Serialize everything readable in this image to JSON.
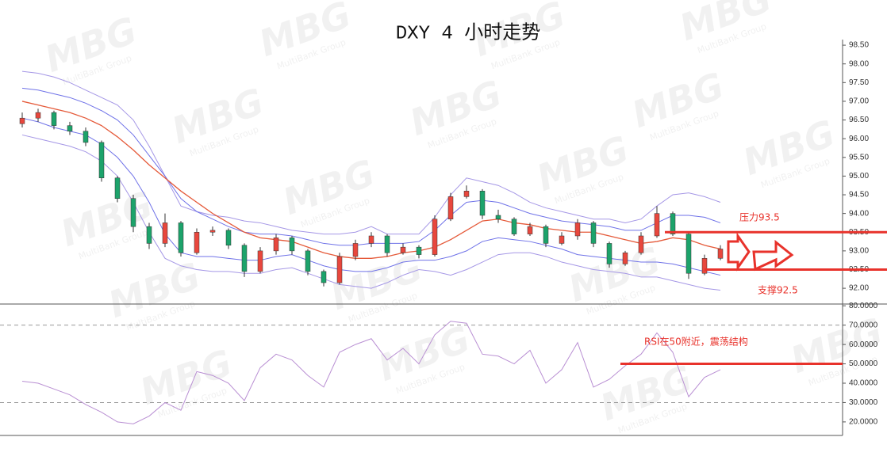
{
  "chart_data": [
    {
      "type": "candlestick",
      "title": "DXY 4 小时走势",
      "open": [
        96.4,
        96.55,
        96.7,
        96.35,
        96.2,
        95.9,
        94.95,
        94.4,
        93.65,
        93.2,
        93.75,
        92.95,
        93.5,
        93.55,
        93.15,
        92.45,
        93.0,
        93.35,
        93.0,
        92.45,
        92.15,
        92.85,
        93.2,
        93.4,
        92.95,
        93.1,
        92.9,
        93.85,
        94.45,
        94.6,
        93.95,
        93.85,
        93.45,
        93.65,
        93.2,
        93.4,
        93.75,
        93.2,
        92.65,
        92.95,
        93.4,
        94.0,
        93.45,
        92.4,
        92.8
      ],
      "high": [
        96.7,
        96.8,
        96.75,
        96.45,
        96.3,
        95.95,
        95.0,
        94.5,
        93.75,
        94.0,
        93.8,
        93.6,
        93.65,
        93.6,
        93.2,
        93.1,
        93.45,
        93.4,
        93.05,
        92.5,
        92.95,
        93.3,
        93.5,
        93.45,
        93.2,
        93.15,
        93.95,
        94.55,
        94.75,
        94.65,
        94.1,
        93.9,
        93.75,
        93.7,
        93.5,
        93.85,
        93.8,
        93.25,
        93.0,
        93.5,
        94.2,
        94.05,
        93.5,
        92.9,
        93.15
      ],
      "low": [
        96.3,
        96.45,
        96.25,
        96.1,
        95.8,
        94.85,
        94.3,
        93.5,
        93.05,
        93.1,
        92.85,
        92.9,
        93.4,
        93.05,
        92.3,
        92.4,
        92.9,
        92.9,
        92.35,
        92.05,
        92.1,
        92.75,
        93.1,
        92.85,
        92.9,
        92.8,
        92.85,
        93.8,
        94.4,
        93.85,
        93.75,
        93.4,
        93.4,
        93.1,
        93.15,
        93.3,
        93.1,
        92.55,
        92.6,
        92.9,
        93.35,
        93.4,
        92.25,
        92.35,
        92.75
      ],
      "close": [
        96.55,
        96.7,
        96.35,
        96.2,
        95.9,
        94.95,
        94.4,
        93.65,
        93.2,
        93.75,
        92.95,
        93.5,
        93.55,
        93.15,
        92.45,
        93.0,
        93.35,
        93.0,
        92.45,
        92.15,
        92.85,
        93.2,
        93.4,
        92.95,
        93.1,
        92.9,
        93.85,
        94.45,
        94.6,
        93.95,
        93.85,
        93.45,
        93.65,
        93.2,
        93.4,
        93.75,
        93.2,
        92.65,
        92.95,
        93.4,
        94.0,
        93.45,
        92.4,
        92.8,
        93.05
      ],
      "up_color": "#e8473d",
      "down_color": "#1ca36b",
      "series": [
        {
          "color": "#a597e6",
          "values": [
            97.8,
            97.75,
            97.65,
            97.5,
            97.3,
            97.1,
            96.9,
            96.5,
            95.8,
            95.0,
            94.2,
            94.05,
            93.95,
            93.9,
            93.8,
            93.75,
            93.65,
            93.55,
            93.5,
            93.45,
            93.45,
            93.5,
            93.65,
            93.45,
            93.45,
            93.45,
            93.9,
            94.5,
            94.95,
            94.85,
            94.75,
            94.55,
            94.3,
            94.15,
            94.05,
            93.95,
            93.85,
            93.85,
            93.75,
            93.85,
            94.2,
            94.5,
            94.55,
            94.45,
            94.3
          ]
        },
        {
          "color": "#6f72e8",
          "values": [
            97.35,
            97.3,
            97.2,
            97.1,
            96.95,
            96.75,
            96.5,
            96.1,
            95.55,
            95.0,
            94.4,
            94.05,
            93.85,
            93.65,
            93.5,
            93.45,
            93.45,
            93.4,
            93.3,
            93.2,
            93.15,
            93.15,
            93.2,
            93.2,
            93.2,
            93.25,
            93.55,
            93.95,
            94.3,
            94.35,
            94.3,
            94.15,
            94.0,
            93.9,
            93.8,
            93.75,
            93.7,
            93.65,
            93.55,
            93.55,
            93.75,
            93.95,
            93.95,
            93.9,
            93.75
          ]
        },
        {
          "color": "#e55a3a",
          "values": [
            97.0,
            96.9,
            96.8,
            96.7,
            96.55,
            96.35,
            96.05,
            95.7,
            95.3,
            94.95,
            94.6,
            94.3,
            94.0,
            93.75,
            93.5,
            93.35,
            93.3,
            93.25,
            93.1,
            92.95,
            92.85,
            92.8,
            92.8,
            92.85,
            92.95,
            93.0,
            93.1,
            93.3,
            93.55,
            93.8,
            93.85,
            93.75,
            93.7,
            93.6,
            93.55,
            93.5,
            93.5,
            93.4,
            93.3,
            93.2,
            93.25,
            93.35,
            93.3,
            93.15,
            93.05
          ]
        },
        {
          "color": "#6f72e8",
          "values": [
            96.55,
            96.45,
            96.3,
            96.2,
            96.1,
            95.85,
            95.5,
            95.0,
            94.3,
            93.45,
            92.95,
            92.85,
            92.85,
            92.8,
            92.75,
            92.75,
            92.85,
            92.9,
            92.75,
            92.6,
            92.5,
            92.45,
            92.45,
            92.55,
            92.7,
            92.75,
            92.75,
            92.85,
            93.0,
            93.25,
            93.35,
            93.3,
            93.25,
            93.15,
            93.05,
            92.9,
            92.85,
            92.8,
            92.75,
            92.7,
            92.7,
            92.65,
            92.55,
            92.45,
            92.35
          ]
        },
        {
          "color": "#a597e6",
          "values": [
            96.1,
            96.0,
            95.9,
            95.8,
            95.65,
            95.4,
            95.0,
            94.3,
            93.5,
            92.8,
            92.6,
            92.5,
            92.45,
            92.45,
            92.4,
            92.4,
            92.5,
            92.55,
            92.4,
            92.25,
            92.1,
            92.05,
            92.0,
            92.15,
            92.35,
            92.5,
            92.45,
            92.35,
            92.5,
            92.7,
            92.9,
            92.95,
            92.95,
            92.85,
            92.7,
            92.6,
            92.5,
            92.45,
            92.4,
            92.3,
            92.3,
            92.2,
            92.1,
            92.0,
            91.95
          ]
        }
      ],
      "ylim": [
        91.6,
        98.65
      ],
      "yticks": [
        {
          "value": 92,
          "label": "92.00"
        },
        {
          "value": 92.5,
          "label": "92.50"
        },
        {
          "value": 93,
          "label": "93.00"
        },
        {
          "value": 93.5,
          "label": "93.50"
        },
        {
          "value": 94,
          "label": "94.00"
        },
        {
          "value": 94.5,
          "label": "94.50"
        },
        {
          "value": 95,
          "label": "95.00"
        },
        {
          "value": 95.5,
          "label": "95.50"
        },
        {
          "value": 96,
          "label": "96.00"
        },
        {
          "value": 96.5,
          "label": "96.50"
        },
        {
          "value": 97,
          "label": "97.00"
        },
        {
          "value": 97.5,
          "label": "97.50"
        },
        {
          "value": 98,
          "label": "98.00"
        },
        {
          "value": 98.5,
          "label": "98.50"
        }
      ],
      "hlines": [
        {
          "value": 93.5,
          "color": "#e8322b",
          "text": "压力93.5"
        },
        {
          "value": 92.5,
          "color": "#e8322b",
          "text": "支撑92.5"
        }
      ]
    },
    {
      "type": "line",
      "series": [
        {
          "color": "#b98fd3",
          "values": [
            41,
            40,
            37,
            34,
            29,
            25,
            20,
            19,
            23,
            30,
            26,
            46,
            44,
            40,
            31,
            48,
            55,
            52,
            44,
            38,
            56,
            60,
            63,
            52,
            58,
            50,
            65,
            72,
            71,
            55,
            54,
            50,
            57,
            40,
            47,
            61,
            38,
            42,
            49,
            55,
            66,
            56,
            33,
            43,
            47
          ]
        }
      ],
      "ylim": [
        13,
        80.5
      ],
      "yticks": [
        {
          "value": 20,
          "label": "20.0000"
        },
        {
          "value": 30,
          "label": "30.0000"
        },
        {
          "value": 40,
          "label": "40.0000"
        },
        {
          "value": 50,
          "label": "50.0000"
        },
        {
          "value": 60,
          "label": "60.0000"
        },
        {
          "value": 70,
          "label": "70.0000"
        },
        {
          "value": 80,
          "label": "80.0000"
        }
      ],
      "dashed_levels": [
        30,
        70
      ],
      "hlines": [
        {
          "value": 50,
          "color": "#e8322b",
          "text": "RSI在50附近，震荡结构"
        }
      ]
    }
  ],
  "watermark": {
    "logo": "MBG",
    "text": "MultiBank Group"
  }
}
